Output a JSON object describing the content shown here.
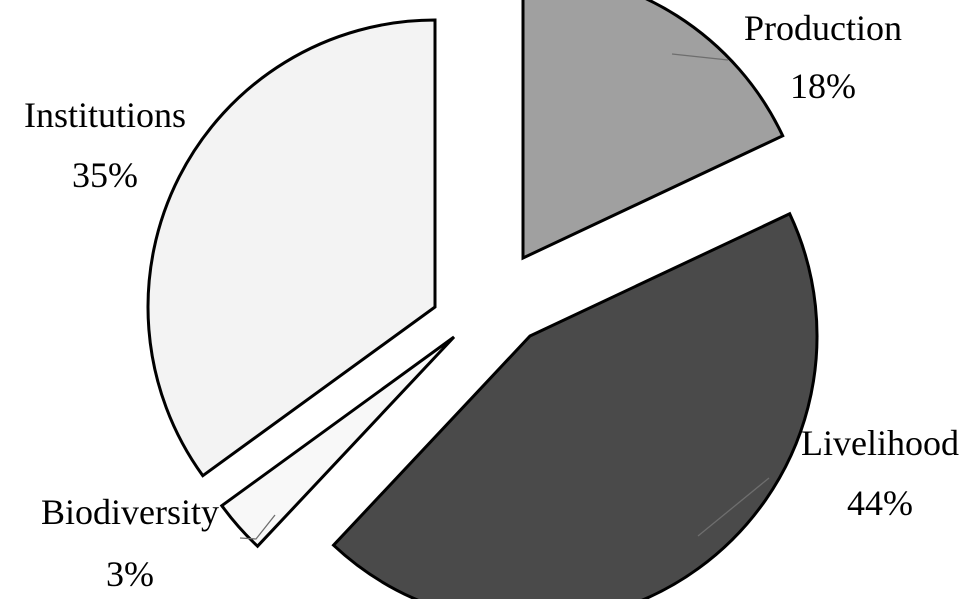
{
  "chart_data": {
    "type": "pie",
    "title": "",
    "start_angle_deg": 90,
    "direction": "clockwise",
    "series": [
      {
        "name": "Production",
        "percent_label": "18%",
        "value": 18,
        "color": "#a0a0a0"
      },
      {
        "name": "Livelihood",
        "percent_label": "44%",
        "value": 44,
        "color": "#4a4a4a"
      },
      {
        "name": "Biodiversity",
        "percent_label": "3%",
        "value": 3,
        "color": "#f8f8f8"
      },
      {
        "name": "Institutions",
        "percent_label": "35%",
        "value": 35,
        "color": "#f3f3f3"
      }
    ],
    "exploded": true,
    "legend": "none",
    "labels_outside": true
  }
}
